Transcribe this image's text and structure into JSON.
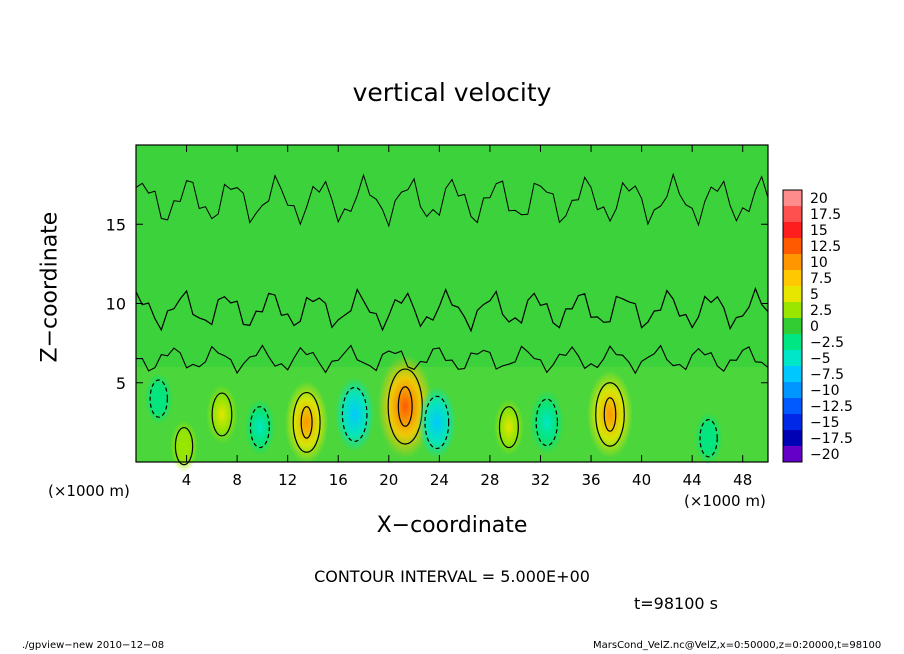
{
  "chart_data": {
    "type": "heatmap",
    "title": "vertical velocity",
    "xlabel": "X−coordinate",
    "ylabel": "Z−coordinate",
    "x_unit_left": "(×1000 m)",
    "x_unit_right": "(×1000 m)",
    "xlim": [
      0,
      50
    ],
    "ylim": [
      0,
      20
    ],
    "xticks": [
      4,
      8,
      12,
      16,
      20,
      24,
      28,
      32,
      36,
      40,
      44,
      48
    ],
    "yticks": [
      5,
      10,
      15
    ],
    "colorbar": {
      "levels": [
        20,
        17.5,
        15,
        12.5,
        10,
        7.5,
        5,
        2.5,
        0,
        -2.5,
        -5,
        -7.5,
        -10,
        -12.5,
        -15,
        -17.5,
        -20
      ],
      "labels": [
        "20",
        "17.5",
        "15",
        "12.5",
        "10",
        "7.5",
        "5",
        "2.5",
        "0",
        "−2.5",
        "−5",
        "−7.5",
        "−10",
        "−12.5",
        "−15",
        "−17.5",
        "−20"
      ],
      "colors": [
        "#ff8c8c",
        "#ff5050",
        "#ff1e1e",
        "#ff5a00",
        "#ff9600",
        "#ffc800",
        "#e6e600",
        "#9be600",
        "#32cd32",
        "#00e682",
        "#00e6c8",
        "#00c8ff",
        "#0096ff",
        "#005aff",
        "#0028e6",
        "#0000b4",
        "#6400c8"
      ]
    },
    "features": [
      {
        "x": 21.3,
        "z": 3.5,
        "w": 13.5
      },
      {
        "x": 13.5,
        "z": 2.5,
        "w": 9
      },
      {
        "x": 37.5,
        "z": 3.0,
        "w": 10
      },
      {
        "x": 6.8,
        "z": 3.0,
        "w": 4.5
      },
      {
        "x": 29.5,
        "z": 2.2,
        "w": 4
      },
      {
        "x": 3.8,
        "z": 1.0,
        "w": 3
      },
      {
        "x": 17.3,
        "z": 3.0,
        "w": -7.5
      },
      {
        "x": 23.8,
        "z": 2.5,
        "w": -7
      },
      {
        "x": 32.5,
        "z": 2.5,
        "w": -5.5
      },
      {
        "x": 9.8,
        "z": 2.2,
        "w": -4
      },
      {
        "x": 1.8,
        "z": 4.0,
        "w": -3
      },
      {
        "x": 45.3,
        "z": 1.5,
        "w": -3
      }
    ]
  },
  "annotations": {
    "contour_interval": "CONTOUR INTERVAL = 5.000E+00",
    "time": "t=98100 s",
    "footer_left": "./gpview−new   2010−12−08",
    "footer_right": "MarsCond_VelZ.nc@VelZ,x=0:50000,z=0:20000,t=98100"
  }
}
